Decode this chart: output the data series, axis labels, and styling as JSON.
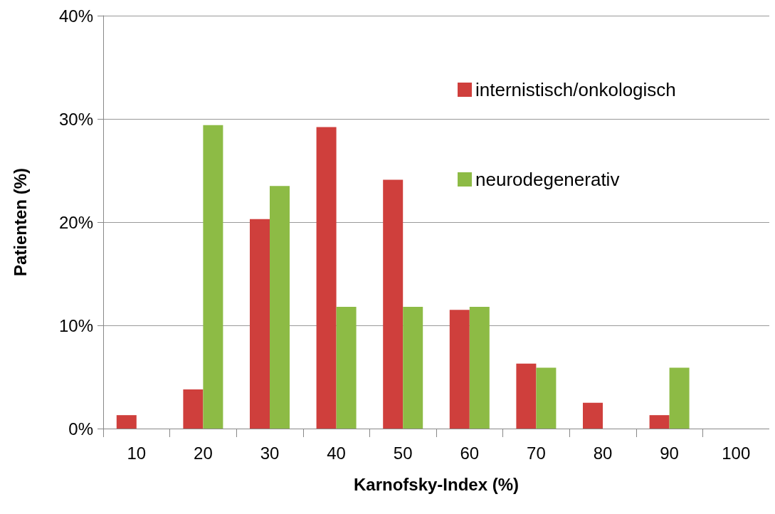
{
  "chart_data": {
    "type": "bar",
    "xlabel": "Karnofsky-Index (%)",
    "ylabel": "Patienten (%)",
    "categories": [
      "10",
      "20",
      "30",
      "40",
      "50",
      "60",
      "70",
      "80",
      "90",
      "100"
    ],
    "series": [
      {
        "name": "internistisch/onkologisch",
        "color": "#cf3f3c",
        "values": [
          1.3,
          3.8,
          20.3,
          29.2,
          24.1,
          11.5,
          6.3,
          2.5,
          1.3,
          0
        ]
      },
      {
        "name": "neurodegenerativ",
        "color": "#8dbb45",
        "values": [
          0,
          29.4,
          23.5,
          11.8,
          11.8,
          11.8,
          5.9,
          0,
          5.9,
          0
        ]
      }
    ],
    "ylim": [
      0,
      40
    ],
    "yticks": [
      {
        "value": 0,
        "label": "0%"
      },
      {
        "value": 10,
        "label": "10%"
      },
      {
        "value": 20,
        "label": "20%"
      },
      {
        "value": 30,
        "label": "30%"
      },
      {
        "value": 40,
        "label": "40%"
      }
    ],
    "grid": "y",
    "legend": "top right"
  }
}
